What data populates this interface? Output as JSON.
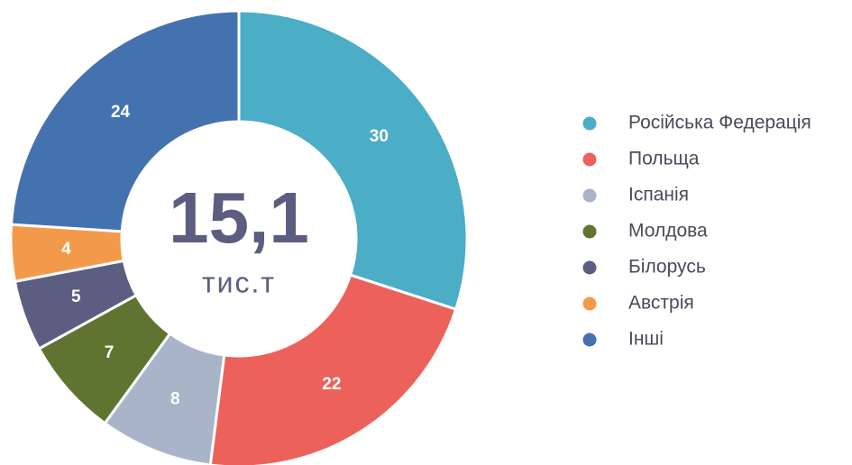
{
  "chart_data": {
    "type": "donut",
    "center_value": "15,1",
    "center_unit": "тис.т",
    "categories": [
      "Російська Федерація",
      "Польща",
      "Іспанія",
      "Молдова",
      "Білорусь",
      "Австрія",
      "Інші"
    ],
    "values": [
      30,
      22,
      8,
      7,
      5,
      4,
      24
    ],
    "colors": [
      "#4badc6",
      "#ec625b",
      "#a9b4c8",
      "#5f7431",
      "#5b5e80",
      "#f39a4a",
      "#4472ae"
    ],
    "legend": "right"
  }
}
